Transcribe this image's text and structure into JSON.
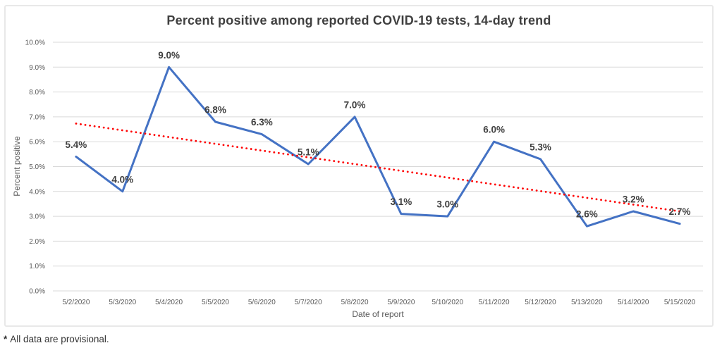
{
  "chart": {
    "title": "Percent positive among reported COVID-19 tests, 14-day trend",
    "footnote": {
      "marker": "*",
      "text": "All data are provisional."
    }
  },
  "chart_data": {
    "type": "line",
    "title": "Percent positive among reported COVID-19 tests, 14-day trend",
    "xlabel": "Date of report",
    "ylabel": "Percent positive",
    "categories": [
      "5/2/2020",
      "5/3/2020",
      "5/4/2020",
      "5/5/2020",
      "5/6/2020",
      "5/7/2020",
      "5/8/2020",
      "5/9/2020",
      "5/10/2020",
      "5/11/2020",
      "5/12/2020",
      "5/13/2020",
      "5/14/2020",
      "5/15/2020"
    ],
    "series": [
      {
        "name": "percent-positive",
        "values": [
          5.4,
          4.0,
          9.0,
          6.8,
          6.3,
          5.1,
          7.0,
          3.1,
          3.0,
          6.0,
          5.3,
          2.6,
          3.2,
          2.7
        ],
        "labels": [
          "5.4%",
          "4.0%",
          "9.0%",
          "6.8%",
          "6.3%",
          "5.1%",
          "7.0%",
          "3.1%",
          "3.0%",
          "6.0%",
          "5.3%",
          "2.6%",
          "3.2%",
          "2.7%"
        ]
      }
    ],
    "trendline": {
      "type": "linear",
      "style": "dotted",
      "start_value": 6.73,
      "end_value": 3.2
    },
    "ylim": [
      0,
      10
    ],
    "ytick_step": 1,
    "ytick_labels": [
      "0.0%",
      "1.0%",
      "2.0%",
      "3.0%",
      "4.0%",
      "5.0%",
      "6.0%",
      "7.0%",
      "8.0%",
      "9.0%",
      "10.0%"
    ],
    "grid": "horizontal",
    "legend": "none",
    "colors": {
      "series": "#4472C4",
      "trendline": "#FF0000",
      "gridline": "#D9D9D9",
      "data_label": "#404040",
      "tick_label": "#595959",
      "title": "#404040"
    }
  }
}
